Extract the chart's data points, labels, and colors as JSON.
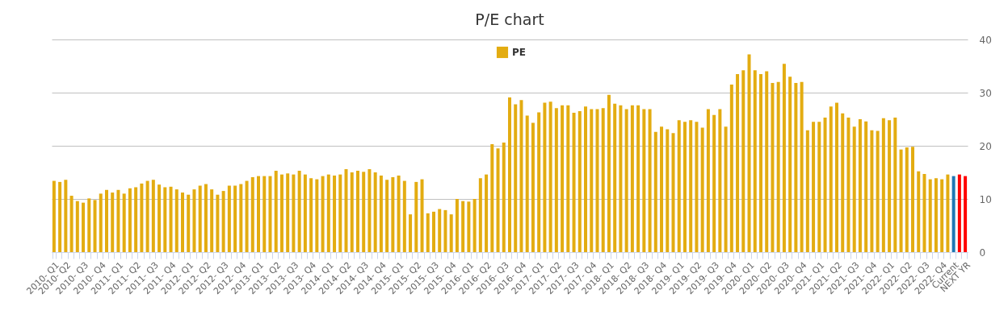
{
  "chart_data": {
    "type": "bar",
    "title": "P/E chart",
    "categories": [
      "2010- Q1",
      null,
      "2010- Q2",
      null,
      null,
      "2010- Q3",
      null,
      null,
      "2010- Q4",
      null,
      null,
      "2011- Q1",
      null,
      null,
      "2011- Q2",
      null,
      null,
      "2011- Q3",
      null,
      null,
      "2011- Q4",
      null,
      null,
      "2012- Q1",
      null,
      null,
      "2012- Q2",
      null,
      null,
      "2012- Q3",
      null,
      null,
      "2012- Q4",
      null,
      null,
      "2013- Q1",
      null,
      null,
      "2013- Q2",
      null,
      null,
      "2013- Q3",
      null,
      null,
      "2013- Q4",
      null,
      null,
      "2014- Q1",
      null,
      null,
      "2014- Q2",
      null,
      null,
      "2014- Q3",
      null,
      null,
      "2014- Q4",
      null,
      null,
      "2015- Q1",
      null,
      null,
      "2015- Q2",
      null,
      null,
      "2015- Q3",
      null,
      null,
      "2015- Q4",
      null,
      null,
      "2016- Q1",
      null,
      null,
      "2016- Q2",
      null,
      null,
      "2016- Q3",
      null,
      null,
      "2016- Q4",
      null,
      null,
      "2017- Q1",
      null,
      null,
      "2017- Q2",
      null,
      null,
      "2017- Q3",
      null,
      null,
      "2017- Q4",
      null,
      null,
      "2018- Q1",
      null,
      null,
      "2018- Q2",
      null,
      null,
      "2018- Q3",
      null,
      null,
      "2018- Q4",
      null,
      null,
      "2019- Q1",
      null,
      null,
      "2019- Q2",
      null,
      null,
      "2019- Q3",
      null,
      null,
      "2019- Q4",
      null,
      null,
      "2020- Q1",
      null,
      null,
      "2020- Q2",
      null,
      null,
      "2020- Q3",
      null,
      null,
      "2020- Q4",
      null,
      null,
      "2021- Q1",
      null,
      null,
      "2021- Q2",
      null,
      null,
      "2021- Q3",
      null,
      null,
      "2021- Q4",
      null,
      null,
      "2022- Q1",
      null,
      null,
      "2022- Q2",
      null,
      null,
      "2022- Q3",
      null,
      null,
      "2022- Q4",
      null,
      "Current",
      null,
      "NEXT YR"
    ],
    "series": [
      {
        "name": "PE",
        "color": "#e3ac11",
        "values": [
          13.4,
          13.2,
          13.6,
          10.6,
          9.6,
          9.3,
          10.1,
          9.8,
          11.0,
          11.7,
          11.2,
          11.7,
          11.0,
          12.0,
          12.2,
          12.9,
          13.4,
          13.6,
          12.7,
          12.2,
          12.3,
          11.8,
          11.2,
          10.8,
          11.8,
          12.5,
          12.8,
          11.8,
          10.8,
          11.5,
          12.5,
          12.5,
          12.8,
          13.4,
          14.1,
          14.3,
          14.3,
          14.3,
          15.3,
          14.6,
          14.8,
          14.6,
          15.3,
          14.6,
          13.9,
          13.7,
          14.3,
          14.6,
          14.4,
          14.6,
          15.6,
          15.0,
          15.3,
          15.1,
          15.6,
          15.0,
          14.4,
          13.6,
          14.1,
          14.4,
          13.4,
          7.1,
          13.2,
          13.7,
          7.3,
          7.6,
          8.1,
          7.9,
          7.1,
          10.0,
          9.6,
          9.5,
          10.0,
          13.9,
          14.6,
          20.3,
          19.5,
          20.6,
          29.1,
          27.8,
          28.6,
          25.7,
          24.3,
          26.3,
          28.1,
          28.3,
          27.1,
          27.6,
          27.6,
          26.2,
          26.5,
          27.4,
          26.9,
          26.9,
          27.1,
          29.6,
          27.9,
          27.6,
          26.9,
          27.6,
          27.6,
          26.9,
          26.9,
          22.6,
          23.6,
          23.1,
          22.4,
          24.8,
          24.5,
          24.8,
          24.5,
          23.4,
          26.9,
          25.8,
          26.9,
          23.6,
          31.5,
          33.5,
          34.2,
          37.2,
          34.2,
          33.5,
          34.0,
          31.8,
          32.0,
          35.4,
          33.0,
          31.8,
          32.0,
          22.9,
          24.5,
          24.5,
          25.3,
          27.4,
          28.1,
          26.1,
          25.3,
          23.6,
          25.0,
          24.6,
          22.9,
          22.8,
          25.2,
          24.8,
          25.3,
          19.3,
          19.7,
          19.8,
          15.2,
          14.7,
          13.7,
          13.9,
          13.7,
          14.6,
          null,
          null,
          null
        ]
      },
      {
        "color": "#1f77b4",
        "values": [
          null,
          null,
          null,
          null,
          null,
          null,
          null,
          null,
          null,
          null,
          null,
          null,
          null,
          null,
          null,
          null,
          null,
          null,
          null,
          null,
          null,
          null,
          null,
          null,
          null,
          null,
          null,
          null,
          null,
          null,
          null,
          null,
          null,
          null,
          null,
          null,
          null,
          null,
          null,
          null,
          null,
          null,
          null,
          null,
          null,
          null,
          null,
          null,
          null,
          null,
          null,
          null,
          null,
          null,
          null,
          null,
          null,
          null,
          null,
          null,
          null,
          null,
          null,
          null,
          null,
          null,
          null,
          null,
          null,
          null,
          null,
          null,
          null,
          null,
          null,
          null,
          null,
          null,
          null,
          null,
          null,
          null,
          null,
          null,
          null,
          null,
          null,
          null,
          null,
          null,
          null,
          null,
          null,
          null,
          null,
          null,
          null,
          null,
          null,
          null,
          null,
          null,
          null,
          null,
          null,
          null,
          null,
          null,
          null,
          null,
          null,
          null,
          null,
          null,
          null,
          null,
          null,
          null,
          null,
          null,
          null,
          null,
          null,
          null,
          null,
          null,
          null,
          null,
          null,
          null,
          null,
          null,
          null,
          null,
          null,
          null,
          null,
          null,
          null,
          null,
          null,
          null,
          null,
          null,
          null,
          null,
          null,
          null,
          null,
          null,
          null,
          null,
          null,
          null,
          14.3,
          null,
          null
        ]
      },
      {
        "color": "#ff0000",
        "values": [
          null,
          null,
          null,
          null,
          null,
          null,
          null,
          null,
          null,
          null,
          null,
          null,
          null,
          null,
          null,
          null,
          null,
          null,
          null,
          null,
          null,
          null,
          null,
          null,
          null,
          null,
          null,
          null,
          null,
          null,
          null,
          null,
          null,
          null,
          null,
          null,
          null,
          null,
          null,
          null,
          null,
          null,
          null,
          null,
          null,
          null,
          null,
          null,
          null,
          null,
          null,
          null,
          null,
          null,
          null,
          null,
          null,
          null,
          null,
          null,
          null,
          null,
          null,
          null,
          null,
          null,
          null,
          null,
          null,
          null,
          null,
          null,
          null,
          null,
          null,
          null,
          null,
          null,
          null,
          null,
          null,
          null,
          null,
          null,
          null,
          null,
          null,
          null,
          null,
          null,
          null,
          null,
          null,
          null,
          null,
          null,
          null,
          null,
          null,
          null,
          null,
          null,
          null,
          null,
          null,
          null,
          null,
          null,
          null,
          null,
          null,
          null,
          null,
          null,
          null,
          null,
          null,
          null,
          null,
          null,
          null,
          null,
          null,
          null,
          null,
          null,
          null,
          null,
          null,
          null,
          null,
          null,
          null,
          null,
          null,
          null,
          null,
          null,
          null,
          null,
          null,
          null,
          null,
          null,
          null,
          null,
          null,
          null,
          null,
          null,
          null,
          null,
          null,
          null,
          null,
          14.6,
          14.3
        ]
      }
    ],
    "ylim": [
      0,
      40
    ],
    "yticks": [
      0,
      10,
      20,
      30,
      40
    ],
    "grid": "y",
    "legend": "top"
  }
}
